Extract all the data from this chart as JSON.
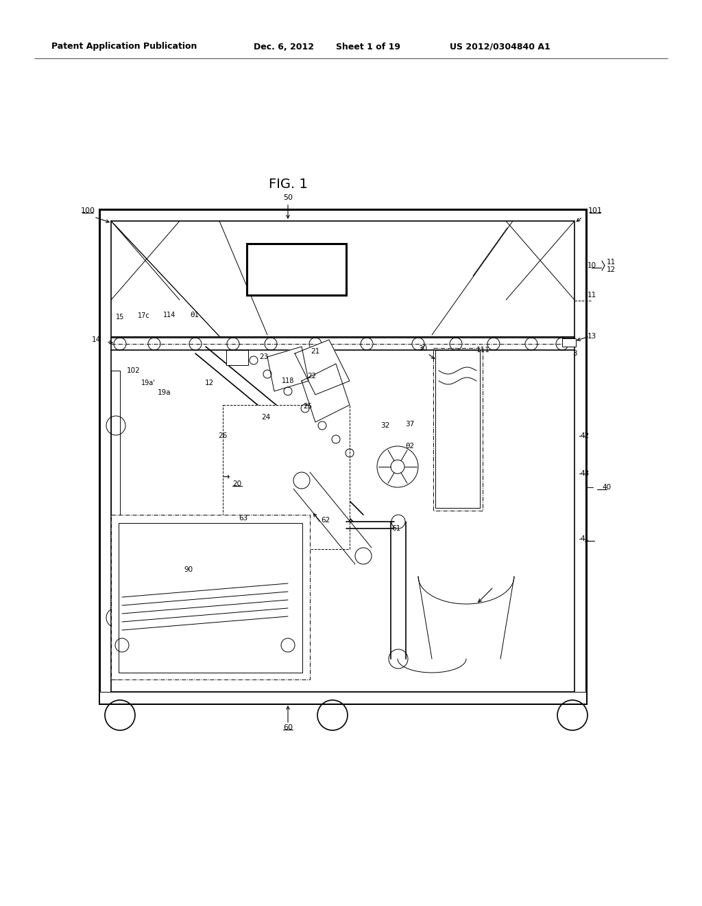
{
  "bg_color": "#ffffff",
  "line_color": "#000000",
  "header_text": "Patent Application Publication",
  "header_date": "Dec. 6, 2012",
  "header_sheet": "Sheet 1 of 19",
  "header_patent": "US 2012/0304840 A1",
  "fig_label": "FIG. 1"
}
